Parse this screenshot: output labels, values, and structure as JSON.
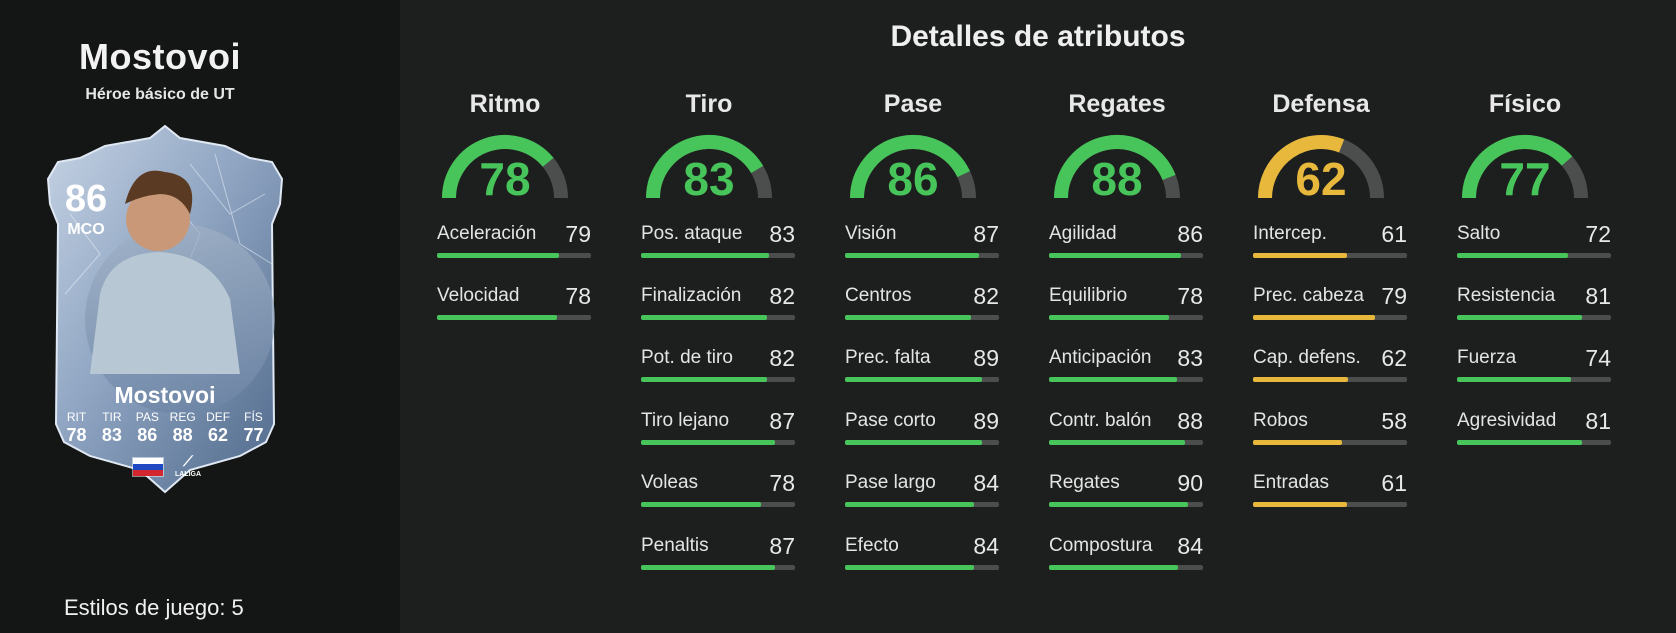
{
  "player": {
    "name": "Mostovoi",
    "subtitle": "Héroe básico de UT",
    "playstyles_label": "Estilos de juego: 5"
  },
  "card": {
    "rating": "86",
    "position": "MCO",
    "name": "Mostovoi",
    "stats": [
      {
        "label": "RIT",
        "value": "78"
      },
      {
        "label": "TIR",
        "value": "83"
      },
      {
        "label": "PAS",
        "value": "86"
      },
      {
        "label": "REG",
        "value": "88"
      },
      {
        "label": "DEF",
        "value": "62"
      },
      {
        "label": "FÍS",
        "value": "77"
      }
    ],
    "nationality_flag": "russia-flag",
    "league_logo_text": "LALIGA"
  },
  "page_title": "Detalles de atributos",
  "colors": {
    "green": "#47c45a",
    "yellow": "#e8b83c",
    "track": "#4b4e4c"
  },
  "categories": [
    {
      "title": "Ritmo",
      "value": 78,
      "color": "green",
      "stats": [
        {
          "name": "Aceleración",
          "value": 79
        },
        {
          "name": "Velocidad",
          "value": 78
        }
      ]
    },
    {
      "title": "Tiro",
      "value": 83,
      "color": "green",
      "stats": [
        {
          "name": "Pos. ataque",
          "value": 83
        },
        {
          "name": "Finalización",
          "value": 82
        },
        {
          "name": "Pot. de tiro",
          "value": 82
        },
        {
          "name": "Tiro lejano",
          "value": 87
        },
        {
          "name": "Voleas",
          "value": 78
        },
        {
          "name": "Penaltis",
          "value": 87
        }
      ]
    },
    {
      "title": "Pase",
      "value": 86,
      "color": "green",
      "stats": [
        {
          "name": "Visión",
          "value": 87
        },
        {
          "name": "Centros",
          "value": 82
        },
        {
          "name": "Prec. falta",
          "value": 89
        },
        {
          "name": "Pase corto",
          "value": 89
        },
        {
          "name": "Pase largo",
          "value": 84
        },
        {
          "name": "Efecto",
          "value": 84
        }
      ]
    },
    {
      "title": "Regates",
      "value": 88,
      "color": "green",
      "stats": [
        {
          "name": "Agilidad",
          "value": 86
        },
        {
          "name": "Equilibrio",
          "value": 78
        },
        {
          "name": "Anticipación",
          "value": 83
        },
        {
          "name": "Contr. balón",
          "value": 88
        },
        {
          "name": "Regates",
          "value": 90
        },
        {
          "name": "Compostura",
          "value": 84
        }
      ]
    },
    {
      "title": "Defensa",
      "value": 62,
      "color": "yellow",
      "stats": [
        {
          "name": "Intercep.",
          "value": 61
        },
        {
          "name": "Prec. cabeza",
          "value": 79
        },
        {
          "name": "Cap. defens.",
          "value": 62
        },
        {
          "name": "Robos",
          "value": 58
        },
        {
          "name": "Entradas",
          "value": 61
        }
      ]
    },
    {
      "title": "Físico",
      "value": 77,
      "color": "green",
      "stats": [
        {
          "name": "Salto",
          "value": 72
        },
        {
          "name": "Resistencia",
          "value": 81
        },
        {
          "name": "Fuerza",
          "value": 74
        },
        {
          "name": "Agresividad",
          "value": 81
        }
      ]
    }
  ]
}
